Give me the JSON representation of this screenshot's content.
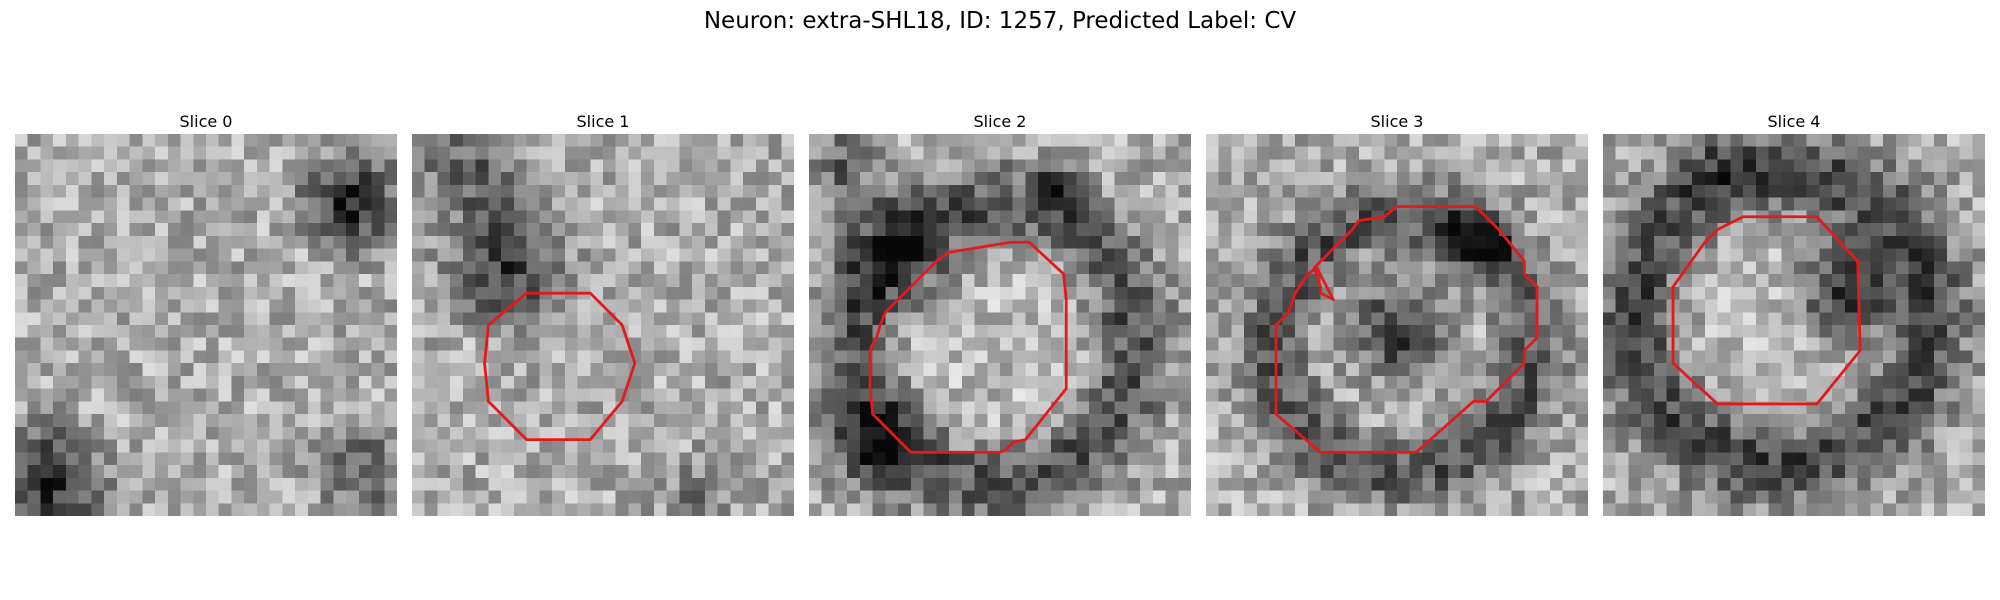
{
  "figure": {
    "title": "Neuron: extra-SHL18, ID: 1257, Predicted Label: CV"
  },
  "panels": [
    {
      "title": "Slice 0",
      "has_contour": false
    },
    {
      "title": "Slice 1",
      "has_contour": true
    },
    {
      "title": "Slice 2",
      "has_contour": true
    },
    {
      "title": "Slice 3",
      "has_contour": true
    },
    {
      "title": "Slice 4",
      "has_contour": true
    }
  ],
  "style": {
    "contour_color": "#e31a1c",
    "colormap": "grayscale"
  }
}
